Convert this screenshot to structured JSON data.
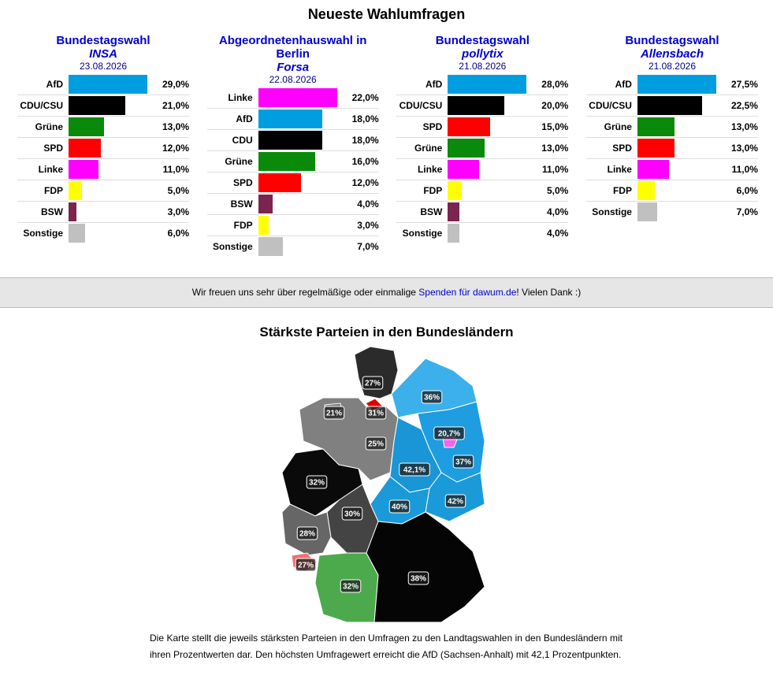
{
  "header": {
    "title": "Neueste Wahlumfragen"
  },
  "polls": [
    {
      "title": "Bundestagswahl",
      "institute": "INSA",
      "date": "23.08.2026",
      "rows": [
        {
          "party": "AfD",
          "value": 29.0,
          "label": "29,0%",
          "color": "#009ee0"
        },
        {
          "party": "CDU/CSU",
          "value": 21.0,
          "label": "21,0%",
          "color": "#000000"
        },
        {
          "party": "Grüne",
          "value": 13.0,
          "label": "13,0%",
          "color": "#0a8a0a"
        },
        {
          "party": "SPD",
          "value": 12.0,
          "label": "12,0%",
          "color": "#ff0000"
        },
        {
          "party": "Linke",
          "value": 11.0,
          "label": "11,0%",
          "color": "#ff00ff"
        },
        {
          "party": "FDP",
          "value": 5.0,
          "label": "5,0%",
          "color": "#ffff00"
        },
        {
          "party": "BSW",
          "value": 3.0,
          "label": "3,0%",
          "color": "#7b2450"
        },
        {
          "party": "Sonstige",
          "value": 6.0,
          "label": "6,0%",
          "color": "#c0c0c0"
        }
      ]
    },
    {
      "title": "Abgeordnetenhauswahl in Berlin",
      "institute": "Forsa",
      "date": "22.08.2026",
      "rows": [
        {
          "party": "Linke",
          "value": 22.0,
          "label": "22,0%",
          "color": "#ff00ff"
        },
        {
          "party": "AfD",
          "value": 18.0,
          "label": "18,0%",
          "color": "#009ee0"
        },
        {
          "party": "CDU",
          "value": 18.0,
          "label": "18,0%",
          "color": "#000000"
        },
        {
          "party": "Grüne",
          "value": 16.0,
          "label": "16,0%",
          "color": "#0a8a0a"
        },
        {
          "party": "SPD",
          "value": 12.0,
          "label": "12,0%",
          "color": "#ff0000"
        },
        {
          "party": "BSW",
          "value": 4.0,
          "label": "4,0%",
          "color": "#7b2450"
        },
        {
          "party": "FDP",
          "value": 3.0,
          "label": "3,0%",
          "color": "#ffff00"
        },
        {
          "party": "Sonstige",
          "value": 7.0,
          "label": "7,0%",
          "color": "#c0c0c0"
        }
      ]
    },
    {
      "title": "Bundestagswahl",
      "institute": "pollytix",
      "date": "21.08.2026",
      "rows": [
        {
          "party": "AfD",
          "value": 28.0,
          "label": "28,0%",
          "color": "#009ee0"
        },
        {
          "party": "CDU/CSU",
          "value": 20.0,
          "label": "20,0%",
          "color": "#000000"
        },
        {
          "party": "SPD",
          "value": 15.0,
          "label": "15,0%",
          "color": "#ff0000"
        },
        {
          "party": "Grüne",
          "value": 13.0,
          "label": "13,0%",
          "color": "#0a8a0a"
        },
        {
          "party": "Linke",
          "value": 11.0,
          "label": "11,0%",
          "color": "#ff00ff"
        },
        {
          "party": "FDP",
          "value": 5.0,
          "label": "5,0%",
          "color": "#ffff00"
        },
        {
          "party": "BSW",
          "value": 4.0,
          "label": "4,0%",
          "color": "#7b2450"
        },
        {
          "party": "Sonstige",
          "value": 4.0,
          "label": "4,0%",
          "color": "#c0c0c0"
        }
      ]
    },
    {
      "title": "Bundestagswahl",
      "institute": "Allensbach",
      "date": "21.08.2026",
      "rows": [
        {
          "party": "AfD",
          "value": 27.5,
          "label": "27,5%",
          "color": "#009ee0"
        },
        {
          "party": "CDU/CSU",
          "value": 22.5,
          "label": "22,5%",
          "color": "#000000"
        },
        {
          "party": "Grüne",
          "value": 13.0,
          "label": "13,0%",
          "color": "#0a8a0a"
        },
        {
          "party": "SPD",
          "value": 13.0,
          "label": "13,0%",
          "color": "#ff0000"
        },
        {
          "party": "Linke",
          "value": 11.0,
          "label": "11,0%",
          "color": "#ff00ff"
        },
        {
          "party": "FDP",
          "value": 6.0,
          "label": "6,0%",
          "color": "#ffff00"
        },
        {
          "party": "Sonstige",
          "value": 7.0,
          "label": "7,0%",
          "color": "#c0c0c0"
        }
      ]
    }
  ],
  "banner": {
    "before": "Wir freuen uns sehr über regelmäßige oder einmalige ",
    "link": "Spenden für dawum.de",
    "after": "! Vielen Dank :)"
  },
  "map": {
    "title": "Stärkste Parteien in den Bundesländern",
    "states": [
      {
        "label": "27%",
        "color": "#2b2b2b"
      },
      {
        "label": "31%",
        "color": "#e00000"
      },
      {
        "label": "21%",
        "color": "#777777"
      },
      {
        "label": "25%",
        "color": "#808080"
      },
      {
        "label": "36%",
        "color": "#3bb0ea"
      },
      {
        "label": "20,7%",
        "color": "#ee66ee"
      },
      {
        "label": "37%",
        "color": "#1e9de0"
      },
      {
        "label": "42,1%",
        "color": "#1a96d6"
      },
      {
        "label": "42%",
        "color": "#1a9ad8"
      },
      {
        "label": "40%",
        "color": "#1a9ad8"
      },
      {
        "label": "32%",
        "color": "#0a0a0a"
      },
      {
        "label": "30%",
        "color": "#444444"
      },
      {
        "label": "28%",
        "color": "#666666"
      },
      {
        "label": "27%",
        "color": "#f07070"
      },
      {
        "label": "32%",
        "color": "#4caa4c"
      },
      {
        "label": "38%",
        "color": "#050505"
      }
    ]
  },
  "note": "Die Karte stellt die jeweils stärksten Parteien in den Umfragen zu den Landtagswahlen in den Bundesländern mit ihren Prozentwerten dar. Den höchsten Umfragewert erreicht die AfD (Sachsen-Anhalt) mit 42,1 Prozentpunkten."
}
